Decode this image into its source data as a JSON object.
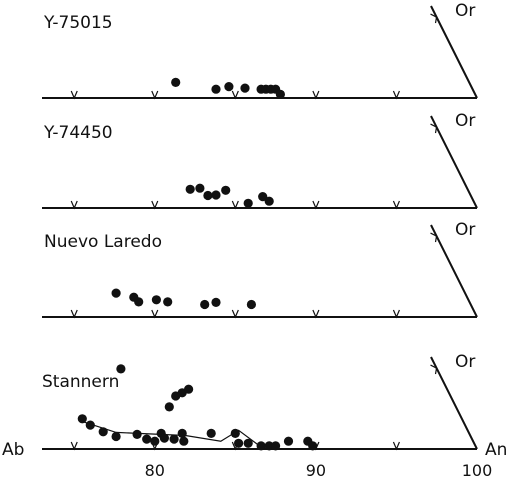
{
  "chart_data": {
    "type": "scatter",
    "x_axis": {
      "left_end_label": "Ab",
      "right_end_label": "An",
      "range": [
        73,
        100
      ],
      "tick_labels": [
        {
          "value": 80,
          "label": "80"
        },
        {
          "value": 90,
          "label": "90"
        },
        {
          "value": 100,
          "label": "100"
        }
      ],
      "minor_ticks": [
        75,
        80,
        85,
        90,
        95
      ]
    },
    "apex_label": "Or",
    "panels": [
      {
        "name": "Y-75015",
        "points": [
          {
            "x": 81.3,
            "y": 0.3
          },
          {
            "x": 83.8,
            "y": 0.17
          },
          {
            "x": 84.6,
            "y": 0.22
          },
          {
            "x": 85.6,
            "y": 0.19
          },
          {
            "x": 86.6,
            "y": 0.17
          },
          {
            "x": 86.9,
            "y": 0.17
          },
          {
            "x": 87.2,
            "y": 0.17
          },
          {
            "x": 87.5,
            "y": 0.17
          },
          {
            "x": 87.8,
            "y": 0.07
          }
        ]
      },
      {
        "name": "Y-74450",
        "points": [
          {
            "x": 82.2,
            "y": 0.36
          },
          {
            "x": 82.8,
            "y": 0.38
          },
          {
            "x": 83.3,
            "y": 0.24
          },
          {
            "x": 83.8,
            "y": 0.25
          },
          {
            "x": 84.4,
            "y": 0.34
          },
          {
            "x": 85.8,
            "y": 0.09
          },
          {
            "x": 86.7,
            "y": 0.22
          },
          {
            "x": 87.1,
            "y": 0.13
          }
        ]
      },
      {
        "name": "Nuevo Laredo",
        "points": [
          {
            "x": 77.6,
            "y": 0.46
          },
          {
            "x": 78.7,
            "y": 0.38
          },
          {
            "x": 79.0,
            "y": 0.29
          },
          {
            "x": 80.1,
            "y": 0.33
          },
          {
            "x": 80.8,
            "y": 0.29
          },
          {
            "x": 83.1,
            "y": 0.24
          },
          {
            "x": 83.8,
            "y": 0.28
          },
          {
            "x": 86.0,
            "y": 0.24
          }
        ]
      },
      {
        "name": "Stannern",
        "points": [
          {
            "x": 77.9,
            "y": 1.54
          },
          {
            "x": 81.3,
            "y": 1.02
          },
          {
            "x": 81.7,
            "y": 1.08
          },
          {
            "x": 82.1,
            "y": 1.15
          },
          {
            "x": 80.9,
            "y": 0.81
          },
          {
            "x": 75.5,
            "y": 0.58
          },
          {
            "x": 76.0,
            "y": 0.46
          },
          {
            "x": 76.8,
            "y": 0.33
          },
          {
            "x": 77.6,
            "y": 0.24
          },
          {
            "x": 78.9,
            "y": 0.28
          },
          {
            "x": 79.5,
            "y": 0.19
          },
          {
            "x": 80.0,
            "y": 0.15
          },
          {
            "x": 80.4,
            "y": 0.3
          },
          {
            "x": 80.6,
            "y": 0.21
          },
          {
            "x": 81.2,
            "y": 0.19
          },
          {
            "x": 81.8,
            "y": 0.15
          },
          {
            "x": 81.7,
            "y": 0.3
          },
          {
            "x": 83.5,
            "y": 0.3
          },
          {
            "x": 85.0,
            "y": 0.3
          },
          {
            "x": 85.2,
            "y": 0.11
          },
          {
            "x": 85.8,
            "y": 0.11
          },
          {
            "x": 86.6,
            "y": 0.06
          },
          {
            "x": 87.1,
            "y": 0.06
          },
          {
            "x": 87.5,
            "y": 0.06
          },
          {
            "x": 88.3,
            "y": 0.15
          },
          {
            "x": 89.5,
            "y": 0.15
          },
          {
            "x": 89.8,
            "y": 0.06
          }
        ],
        "trend_line": [
          {
            "x": 75.3,
            "y": 0.55
          },
          {
            "x": 77.6,
            "y": 0.32
          },
          {
            "x": 81.9,
            "y": 0.26
          },
          {
            "x": 84.1,
            "y": 0.15
          },
          {
            "x": 85.2,
            "y": 0.36
          },
          {
            "x": 86.5,
            "y": 0.06
          },
          {
            "x": 87.7,
            "y": 0.06
          }
        ]
      }
    ]
  }
}
